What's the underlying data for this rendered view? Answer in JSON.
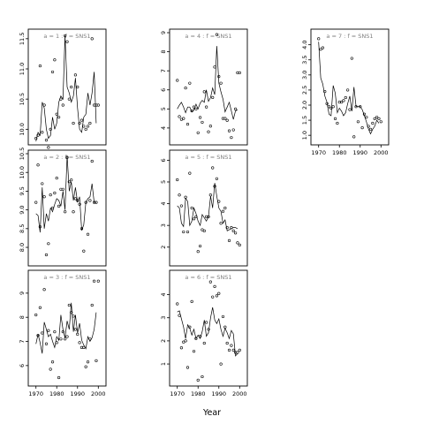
{
  "chart_data": {
    "type": "scatter",
    "xlabel": "Year",
    "panels": [
      {
        "title": "a = 1 : f = SNS1",
        "xlim": [
          1968,
          2002
        ],
        "ylim": [
          9.8,
          11.6
        ],
        "xticks": [],
        "yticks": [
          10.0,
          10.5,
          11.0,
          11.5
        ],
        "points": {
          "x": [
            1970,
            1971,
            1972,
            1973,
            1974,
            1975,
            1976,
            1977,
            1978,
            1979,
            1980,
            1981,
            1982,
            1983,
            1984,
            1985,
            1986,
            1987,
            1988,
            1989,
            1990,
            1991,
            1992,
            1993,
            1994,
            1995,
            1996,
            1997,
            1998,
            1999,
            2000
          ],
          "y": [
            9.85,
            9.9,
            11.05,
            9.95,
            10.4,
            9.82,
            9.7,
            10.0,
            10.95,
            11.15,
            10.25,
            10.2,
            10.5,
            10.4,
            11.55,
            11.45,
            10.5,
            10.7,
            10.1,
            10.9,
            10.7,
            10.1,
            10.15,
            10.05,
            10.0,
            10.05,
            10.1,
            11.5,
            10.4,
            10.4,
            10.4
          ]
        },
        "line": {
          "x": [
            1970,
            1971,
            1972,
            1973,
            1974,
            1975,
            1976,
            1977,
            1978,
            1979,
            1980,
            1981,
            1982,
            1983,
            1984,
            1985,
            1986,
            1987,
            1988,
            1989,
            1990,
            1991,
            1992,
            1993,
            1994,
            1995,
            1996,
            1997,
            1998,
            1999
          ],
          "y": [
            9.8,
            9.95,
            9.9,
            10.45,
            10.35,
            10.0,
            9.85,
            9.9,
            10.2,
            10.0,
            10.1,
            10.45,
            10.55,
            10.5,
            11.55,
            10.7,
            10.6,
            10.45,
            10.55,
            10.85,
            10.35,
            10.0,
            9.95,
            10.2,
            10.25,
            10.6,
            10.4,
            10.6,
            10.95,
            10.1
          ]
        }
      },
      {
        "title": "a = 2 : f = SNS1",
        "xlim": [
          1968,
          2002
        ],
        "ylim": [
          7.6,
          10.5
        ],
        "xticks": [],
        "yticks": [
          8.0,
          8.5,
          9.0,
          9.5,
          10.0,
          10.5
        ],
        "points": {
          "x": [
            1970,
            1971,
            1972,
            1973,
            1974,
            1975,
            1976,
            1977,
            1978,
            1979,
            1980,
            1981,
            1982,
            1983,
            1984,
            1985,
            1986,
            1987,
            1988,
            1989,
            1990,
            1991,
            1992,
            1993,
            1994,
            1995,
            1996,
            1997,
            1998,
            1999
          ],
          "y": [
            9.2,
            10.2,
            8.55,
            9.7,
            9.35,
            7.8,
            8.1,
            9.4,
            9.05,
            9.45,
            9.85,
            9.1,
            9.55,
            9.55,
            8.95,
            10.4,
            9.75,
            9.8,
            8.95,
            9.3,
            9.25,
            9.15,
            8.5,
            7.9,
            9.2,
            8.35,
            9.25,
            10.3,
            9.2,
            9.2
          ]
        },
        "line": {
          "x": [
            1970,
            1971,
            1972,
            1973,
            1974,
            1975,
            1976,
            1977,
            1978,
            1979,
            1980,
            1981,
            1982,
            1983,
            1984,
            1985,
            1986,
            1987,
            1988,
            1989,
            1990,
            1991,
            1992,
            1993,
            1994,
            1995,
            1996,
            1997,
            1998,
            1999
          ],
          "y": [
            8.9,
            8.85,
            8.4,
            9.6,
            8.5,
            8.9,
            8.7,
            9.05,
            8.95,
            9.15,
            9.3,
            9.25,
            9.1,
            9.5,
            9.0,
            10.45,
            9.5,
            9.75,
            9.25,
            9.6,
            9.2,
            9.35,
            8.45,
            8.6,
            9.2,
            9.3,
            9.35,
            9.7,
            9.2,
            9.2
          ]
        }
      },
      {
        "title": "a = 3 : f = SNS1",
        "xlim": [
          1968,
          2002
        ],
        "ylim": [
          5.3,
          9.8
        ],
        "xticks": [
          1970,
          1980,
          1990,
          2000
        ],
        "yticks": [
          6,
          7,
          8,
          9
        ],
        "points": {
          "x": [
            1970,
            1971,
            1972,
            1973,
            1974,
            1975,
            1976,
            1977,
            1978,
            1979,
            1980,
            1981,
            1982,
            1983,
            1984,
            1985,
            1986,
            1987,
            1988,
            1989,
            1990,
            1991,
            1992,
            1993,
            1994,
            1995,
            1996,
            1997,
            1998,
            1999,
            2000
          ],
          "y": [
            8.1,
            7.25,
            8.4,
            7.35,
            9.15,
            6.9,
            7.45,
            5.85,
            6.15,
            7.4,
            6.95,
            5.5,
            7.1,
            7.4,
            7.1,
            7.2,
            8.5,
            8.2,
            8.05,
            7.5,
            7.3,
            6.95,
            6.75,
            6.75,
            5.95,
            6.15,
            7.1,
            8.5,
            9.5,
            6.2,
            9.5
          ]
        },
        "line": {
          "x": [
            1970,
            1971,
            1972,
            1973,
            1974,
            1975,
            1976,
            1977,
            1978,
            1979,
            1980,
            1981,
            1982,
            1983,
            1984,
            1985,
            1986,
            1987,
            1988,
            1989,
            1990,
            1991,
            1992,
            1993,
            1994,
            1995,
            1996,
            1997,
            1998,
            1999
          ],
          "y": [
            6.9,
            7.3,
            6.95,
            6.5,
            7.8,
            7.5,
            7.2,
            7.3,
            7.0,
            6.75,
            7.2,
            7.05,
            8.1,
            7.5,
            7.15,
            7.85,
            7.5,
            8.6,
            7.4,
            8.1,
            7.35,
            7.75,
            7.05,
            6.85,
            6.7,
            7.2,
            7.0,
            7.15,
            7.5,
            8.2
          ]
        }
      },
      {
        "title": "a = 4 : f = SNS1",
        "xlim": [
          1968,
          2002
        ],
        "ylim": [
          3.3,
          9.0
        ],
        "xticks": [],
        "yticks": [
          4,
          5,
          6,
          7,
          8,
          9
        ],
        "points": {
          "x": [
            1970,
            1971,
            1972,
            1973,
            1974,
            1975,
            1976,
            1977,
            1978,
            1979,
            1980,
            1981,
            1982,
            1983,
            1984,
            1985,
            1986,
            1987,
            1988,
            1989,
            1990,
            1991,
            1992,
            1993,
            1994,
            1995,
            1996,
            1997,
            1998,
            1999,
            2000
          ],
          "y": [
            6.5,
            4.6,
            4.45,
            4.5,
            6.1,
            4.2,
            6.35,
            4.9,
            5.1,
            5.0,
            3.75,
            4.55,
            4.3,
            5.9,
            5.1,
            3.8,
            4.1,
            5.6,
            7.2,
            8.9,
            6.7,
            6.35,
            4.5,
            4.5,
            4.4,
            3.85,
            3.5,
            3.9,
            5.0,
            6.9,
            6.9
          ]
        },
        "line": {
          "x": [
            1970,
            1971,
            1972,
            1973,
            1974,
            1975,
            1976,
            1977,
            1978,
            1979,
            1980,
            1981,
            1982,
            1983,
            1984,
            1985,
            1986,
            1987,
            1988,
            1989,
            1990,
            1991,
            1992,
            1993,
            1994,
            1995,
            1996,
            1997,
            1998,
            1999
          ],
          "y": [
            5.0,
            5.2,
            5.35,
            5.1,
            4.8,
            5.1,
            5.1,
            4.85,
            4.95,
            5.25,
            5.0,
            5.3,
            5.45,
            5.35,
            6.0,
            5.4,
            5.6,
            6.1,
            5.75,
            8.3,
            6.35,
            5.9,
            5.5,
            4.85,
            5.1,
            5.35,
            4.9,
            4.45,
            4.9,
            4.95
          ]
        }
      },
      {
        "title": "a = 5 : f = SNS1",
        "xlim": [
          1968,
          2002
        ],
        "ylim": [
          1.3,
          6.3
        ],
        "xticks": [],
        "yticks": [
          2,
          3,
          4,
          5,
          6
        ],
        "points": {
          "x": [
            1970,
            1971,
            1972,
            1973,
            1974,
            1975,
            1976,
            1977,
            1978,
            1979,
            1980,
            1981,
            1982,
            1983,
            1984,
            1985,
            1986,
            1987,
            1988,
            1989,
            1990,
            1991,
            1992,
            1993,
            1994,
            1995,
            1996,
            1997,
            1998,
            1999,
            2000
          ],
          "y": [
            5.1,
            4.4,
            3.9,
            2.7,
            4.3,
            2.7,
            5.4,
            3.8,
            3.3,
            3.4,
            1.8,
            2.05,
            2.8,
            2.75,
            3.4,
            3.4,
            4.4,
            5.65,
            4.8,
            5.15,
            4.1,
            3.1,
            3.65,
            3.8,
            2.9,
            2.3,
            2.9,
            2.75,
            2.65,
            2.2,
            2.1
          ]
        },
        "line": {
          "x": [
            1970,
            1971,
            1972,
            1973,
            1974,
            1975,
            1976,
            1977,
            1978,
            1979,
            1980,
            1981,
            1982,
            1983,
            1984,
            1985,
            1986,
            1987,
            1988,
            1989,
            1990,
            1991,
            1992,
            1993,
            1994,
            1995,
            1996,
            1997,
            1998,
            1999
          ],
          "y": [
            3.9,
            3.8,
            3.1,
            2.95,
            4.25,
            4.1,
            3.0,
            3.2,
            3.8,
            3.55,
            3.2,
            3.0,
            3.5,
            3.35,
            3.2,
            3.4,
            4.35,
            3.8,
            4.95,
            4.35,
            3.8,
            3.65,
            3.1,
            3.25,
            2.75,
            2.8,
            2.85,
            2.9,
            2.9,
            2.85
          ]
        }
      },
      {
        "title": "a = 6 : f = SNS1",
        "xlim": [
          1968,
          2002
        ],
        "ylim": [
          0.2,
          4.9
        ],
        "xticks": [
          1970,
          1980,
          1990,
          2000
        ],
        "yticks": [
          1,
          2,
          3,
          4
        ],
        "points": {
          "x": [
            1970,
            1971,
            1972,
            1973,
            1974,
            1975,
            1976,
            1977,
            1978,
            1979,
            1980,
            1981,
            1982,
            1983,
            1984,
            1985,
            1986,
            1987,
            1988,
            1989,
            1990,
            1991,
            1992,
            1993,
            1994,
            1995,
            1996,
            1997,
            1998,
            1999,
            2000
          ],
          "y": [
            3.6,
            3.1,
            1.7,
            1.95,
            2.0,
            0.85,
            2.6,
            3.7,
            1.55,
            2.1,
            0.3,
            2.2,
            0.45,
            1.9,
            2.8,
            2.5,
            4.55,
            3.9,
            4.35,
            3.95,
            4.05,
            1.0,
            3.05,
            2.6,
            1.9,
            1.6,
            1.8,
            1.6,
            1.5,
            1.5,
            1.6
          ]
        },
        "line": {
          "x": [
            1970,
            1971,
            1972,
            1973,
            1974,
            1975,
            1976,
            1977,
            1978,
            1979,
            1980,
            1981,
            1982,
            1983,
            1984,
            1985,
            1986,
            1987,
            1988,
            1989,
            1990,
            1991,
            1992,
            1993,
            1994,
            1995,
            1996,
            1997,
            1998,
            1999
          ],
          "y": [
            3.25,
            3.3,
            2.95,
            2.6,
            2.1,
            2.7,
            2.55,
            2.25,
            2.5,
            2.1,
            2.25,
            2.1,
            2.4,
            2.9,
            2.2,
            2.35,
            3.0,
            3.45,
            2.9,
            2.75,
            2.95,
            2.5,
            2.2,
            2.55,
            2.35,
            2.1,
            2.45,
            2.3,
            1.35,
            1.45
          ]
        }
      },
      {
        "title": "a = 7 : f = SNS1",
        "xlim": [
          1968,
          2002
        ],
        "ylim": [
          0.8,
          4.4
        ],
        "xticks": [
          1970,
          1980,
          1990,
          2000
        ],
        "yticks": [
          1.0,
          1.5,
          2.0,
          2.5,
          3.0,
          3.5,
          4.0
        ],
        "points": {
          "x": [
            1970,
            1971,
            1972,
            1973,
            1974,
            1975,
            1976,
            1977,
            1978,
            1979,
            1980,
            1981,
            1982,
            1983,
            1984,
            1985,
            1986,
            1987,
            1988,
            1989,
            1990,
            1991,
            1992,
            1993,
            1994,
            1995,
            1996,
            1997,
            1998,
            1999,
            2000
          ],
          "y": [
            4.2,
            3.85,
            3.9,
            2.45,
            2.05,
            1.95,
            1.9,
            1.95,
            1.55,
            1.4,
            2.1,
            2.1,
            2.15,
            2.25,
            2.5,
            1.85,
            3.55,
            0.95,
            1.95,
            1.45,
            1.95,
            1.25,
            1.7,
            1.6,
            1.3,
            1.2,
            1.4,
            1.55,
            1.6,
            1.55,
            1.45
          ]
        },
        "line": {
          "x": [
            1970,
            1971,
            1972,
            1973,
            1974,
            1975,
            1976,
            1977,
            1978,
            1979,
            1980,
            1981,
            1982,
            1983,
            1984,
            1985,
            1986,
            1987,
            1988,
            1989,
            1990,
            1991,
            1992,
            1993,
            1994,
            1995,
            1996,
            1997,
            1998,
            1999
          ],
          "y": [
            4.1,
            2.9,
            2.7,
            2.3,
            2.1,
            1.7,
            1.65,
            2.65,
            2.4,
            1.75,
            1.9,
            1.8,
            1.65,
            1.75,
            2.05,
            2.3,
            1.8,
            2.6,
            1.95,
            1.95,
            1.95,
            1.85,
            1.65,
            1.45,
            1.2,
            1.05,
            1.2,
            1.3,
            1.5,
            1.4
          ]
        }
      }
    ]
  }
}
